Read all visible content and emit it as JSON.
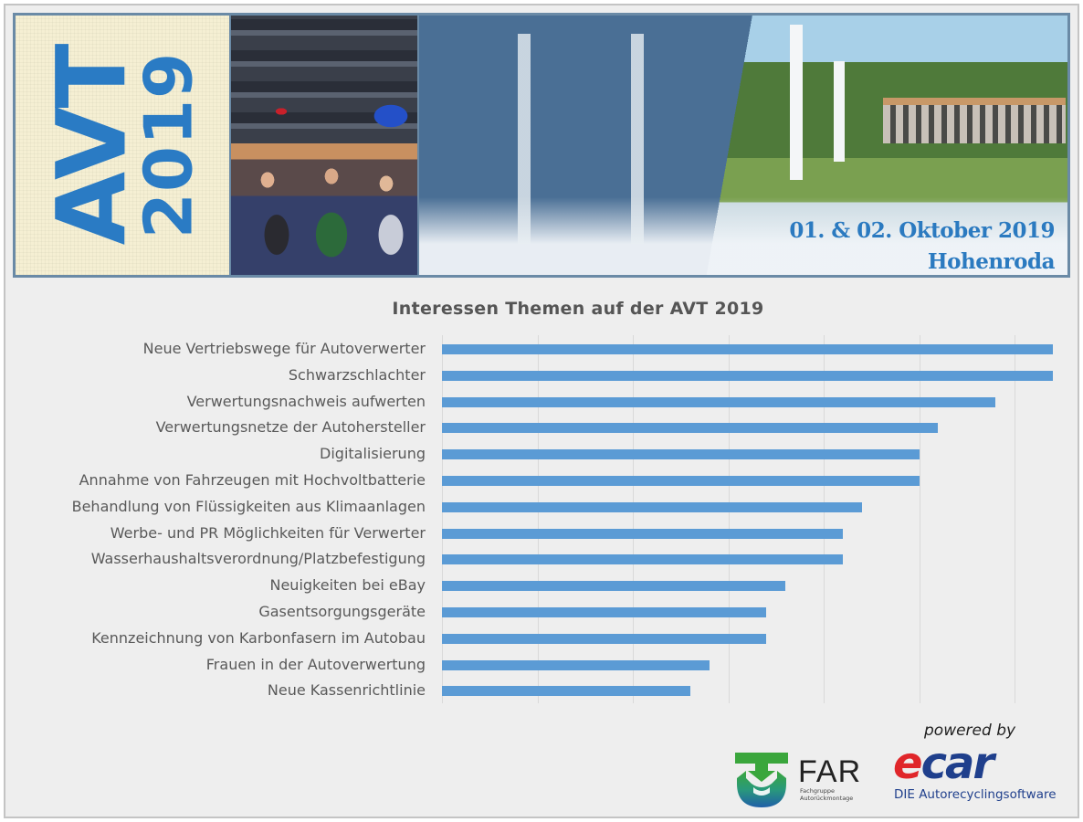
{
  "banner": {
    "logo_main": "AVT",
    "logo_year": "2019",
    "date": "01. & 02. Oktober 2019",
    "location": "Hohenroda",
    "images": [
      "car-scrapyard-photo",
      "conference-audience-photo",
      "event-hall-hotel-photo"
    ]
  },
  "chart_data": {
    "type": "bar",
    "orientation": "horizontal",
    "title": "Interessen Themen auf der AVT 2019",
    "xlabel": "",
    "ylabel": "",
    "xlim": [
      0,
      32
    ],
    "grid": true,
    "grid_step": 5,
    "legend": null,
    "bar_color": "#5b9bd5",
    "categories": [
      "Neue Vertriebswege für Autoverwerter",
      "Schwarzschlachter",
      "Verwertungsnachweis aufwerten",
      "Verwertungsnetze der Autohersteller",
      "Digitalisierung",
      "Annahme von Fahrzeugen mit Hochvoltbatterie",
      "Behandlung von Flüssigkeiten aus Klimaanlagen",
      "Werbe- und PR Möglichkeiten für Verwerter",
      "Wasserhaushaltsverordnung/Platzbefestigung",
      "Neuigkeiten bei eBay",
      "Gasentsorgungsgeräte",
      "Kennzeichnung von Karbonfasern im Autobau",
      "Frauen in der Autoverwertung",
      "Neue Kassenrichtlinie"
    ],
    "values": [
      32,
      32,
      29,
      26,
      25,
      25,
      22,
      21,
      21,
      18,
      17,
      17,
      14,
      13
    ]
  },
  "footer": {
    "powered_by": "powered by",
    "far_name": "FAR",
    "far_sub_1": "Fachgruppe",
    "far_sub_2": "Autorückmontage",
    "ecar_e": "e",
    "ecar_rest": "car",
    "ecar_tagline": "DIE Autorecyclingsoftware"
  }
}
